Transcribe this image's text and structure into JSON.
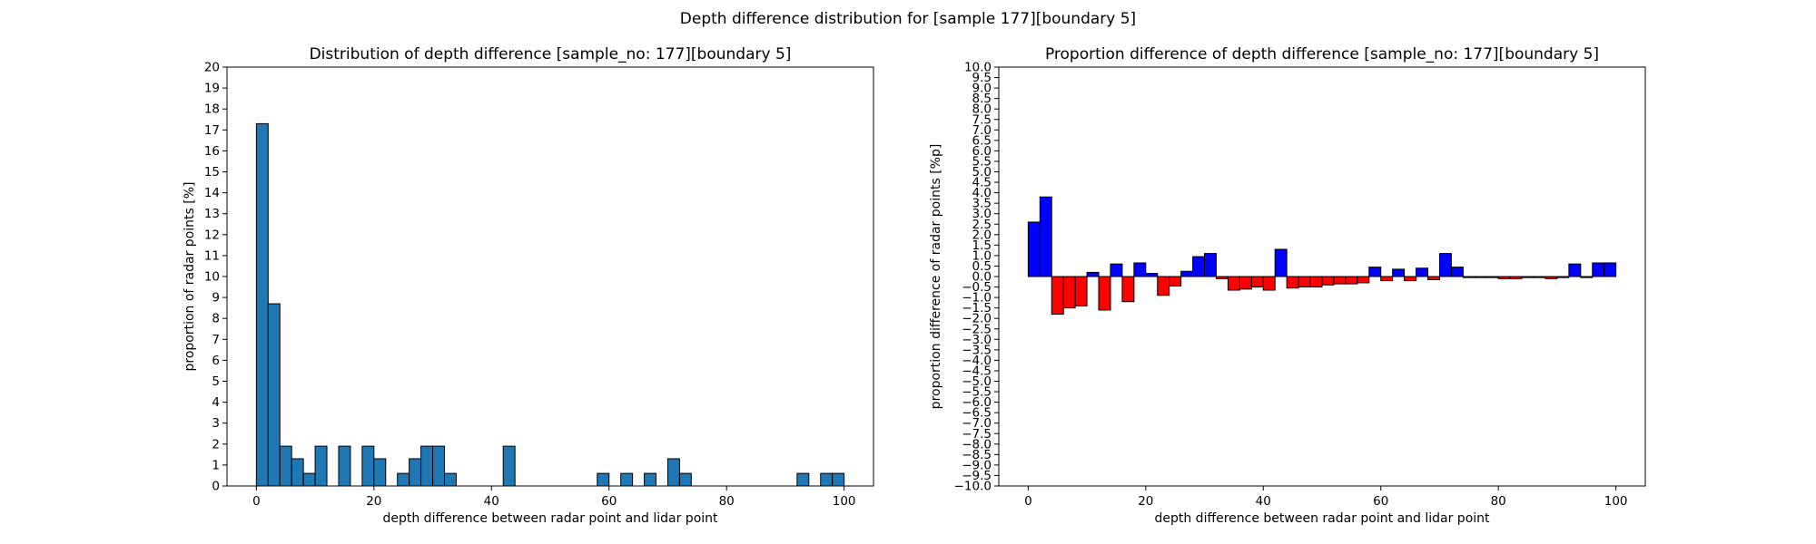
{
  "figure": {
    "suptitle": "Depth difference distribution for [sample 177][boundary 5]"
  },
  "chart_data": [
    {
      "type": "bar",
      "title": "Distribution of depth difference [sample_no: 177][boundary 5]",
      "xlabel": "depth difference between radar point and lidar point",
      "ylabel": "proportion of radar points [%]",
      "xlim": [
        -5,
        105
      ],
      "ylim": [
        0,
        20
      ],
      "x_ticks": [
        0,
        20,
        40,
        60,
        80,
        100
      ],
      "y_ticks": [
        0,
        1,
        2,
        3,
        4,
        5,
        6,
        7,
        8,
        9,
        10,
        11,
        12,
        13,
        14,
        15,
        16,
        17,
        18,
        19,
        20
      ],
      "bin_width": 2,
      "bar_color": "#1f77b4",
      "edge_color": "#000000",
      "bins": [
        {
          "x": 0,
          "value": 17.3
        },
        {
          "x": 2,
          "value": 8.7
        },
        {
          "x": 4,
          "value": 1.9
        },
        {
          "x": 6,
          "value": 1.3
        },
        {
          "x": 8,
          "value": 0.6
        },
        {
          "x": 10,
          "value": 1.9
        },
        {
          "x": 14,
          "value": 1.9
        },
        {
          "x": 18,
          "value": 1.9
        },
        {
          "x": 20,
          "value": 1.3
        },
        {
          "x": 24,
          "value": 0.6
        },
        {
          "x": 26,
          "value": 1.3
        },
        {
          "x": 28,
          "value": 1.9
        },
        {
          "x": 30,
          "value": 1.9
        },
        {
          "x": 32,
          "value": 0.6
        },
        {
          "x": 42,
          "value": 1.9
        },
        {
          "x": 58,
          "value": 0.6
        },
        {
          "x": 62,
          "value": 0.6
        },
        {
          "x": 66,
          "value": 0.6
        },
        {
          "x": 70,
          "value": 1.3
        },
        {
          "x": 72,
          "value": 0.6
        },
        {
          "x": 92,
          "value": 0.6
        },
        {
          "x": 96,
          "value": 0.6
        },
        {
          "x": 98,
          "value": 0.6
        }
      ]
    },
    {
      "type": "bar",
      "title": "Proportion difference of depth difference [sample_no: 177][boundary 5]",
      "xlabel": "depth difference between radar point and lidar point",
      "ylabel": "proportion difference of radar points [%p]",
      "xlim": [
        -5,
        105
      ],
      "ylim": [
        -10,
        10
      ],
      "x_ticks": [
        0,
        20,
        40,
        60,
        80,
        100
      ],
      "y_ticks": [
        "10.0",
        "9.5",
        "9.0",
        "8.5",
        "8.0",
        "7.5",
        "7.0",
        "6.5",
        "6.0",
        "5.5",
        "5.0",
        "4.5",
        "4.0",
        "3.5",
        "3.0",
        "2.5",
        "2.0",
        "1.5",
        "1.0",
        "0.5",
        "0.0",
        "−0.5",
        "−1.0",
        "−1.5",
        "−2.0",
        "−2.5",
        "−3.0",
        "−3.5",
        "−4.0",
        "−4.5",
        "−5.0",
        "−5.5",
        "−6.0",
        "−6.5",
        "−7.0",
        "−7.5",
        "−8.0",
        "−8.5",
        "−9.0",
        "−9.5",
        "−10.0"
      ],
      "bin_width": 2,
      "positive_color": "#0000ff",
      "negative_color": "#ff0000",
      "edge_color": "#000000",
      "bins": [
        {
          "x": 0,
          "value": 2.6
        },
        {
          "x": 2,
          "value": 3.8
        },
        {
          "x": 4,
          "value": -1.8
        },
        {
          "x": 6,
          "value": -1.5
        },
        {
          "x": 8,
          "value": -1.4
        },
        {
          "x": 10,
          "value": 0.2
        },
        {
          "x": 12,
          "value": -1.6
        },
        {
          "x": 14,
          "value": 0.6
        },
        {
          "x": 16,
          "value": -1.2
        },
        {
          "x": 18,
          "value": 0.65
        },
        {
          "x": 20,
          "value": 0.15
        },
        {
          "x": 22,
          "value": -0.9
        },
        {
          "x": 24,
          "value": -0.45
        },
        {
          "x": 26,
          "value": 0.25
        },
        {
          "x": 28,
          "value": 0.95
        },
        {
          "x": 30,
          "value": 1.1
        },
        {
          "x": 32,
          "value": -0.1
        },
        {
          "x": 34,
          "value": -0.65
        },
        {
          "x": 36,
          "value": -0.6
        },
        {
          "x": 38,
          "value": -0.5
        },
        {
          "x": 40,
          "value": -0.65
        },
        {
          "x": 42,
          "value": 1.3
        },
        {
          "x": 44,
          "value": -0.55
        },
        {
          "x": 46,
          "value": -0.5
        },
        {
          "x": 48,
          "value": -0.5
        },
        {
          "x": 50,
          "value": -0.4
        },
        {
          "x": 52,
          "value": -0.35
        },
        {
          "x": 54,
          "value": -0.35
        },
        {
          "x": 56,
          "value": -0.3
        },
        {
          "x": 58,
          "value": 0.45
        },
        {
          "x": 60,
          "value": -0.2
        },
        {
          "x": 62,
          "value": 0.35
        },
        {
          "x": 64,
          "value": -0.2
        },
        {
          "x": 66,
          "value": 0.4
        },
        {
          "x": 68,
          "value": -0.15
        },
        {
          "x": 70,
          "value": 1.1
        },
        {
          "x": 72,
          "value": 0.45
        },
        {
          "x": 74,
          "value": -0.05
        },
        {
          "x": 76,
          "value": -0.05
        },
        {
          "x": 78,
          "value": -0.05
        },
        {
          "x": 80,
          "value": -0.1
        },
        {
          "x": 82,
          "value": -0.1
        },
        {
          "x": 84,
          "value": -0.05
        },
        {
          "x": 86,
          "value": -0.05
        },
        {
          "x": 88,
          "value": -0.1
        },
        {
          "x": 90,
          "value": -0.05
        },
        {
          "x": 92,
          "value": 0.6
        },
        {
          "x": 94,
          "value": -0.05
        },
        {
          "x": 96,
          "value": 0.65
        },
        {
          "x": 98,
          "value": 0.65
        }
      ]
    }
  ]
}
